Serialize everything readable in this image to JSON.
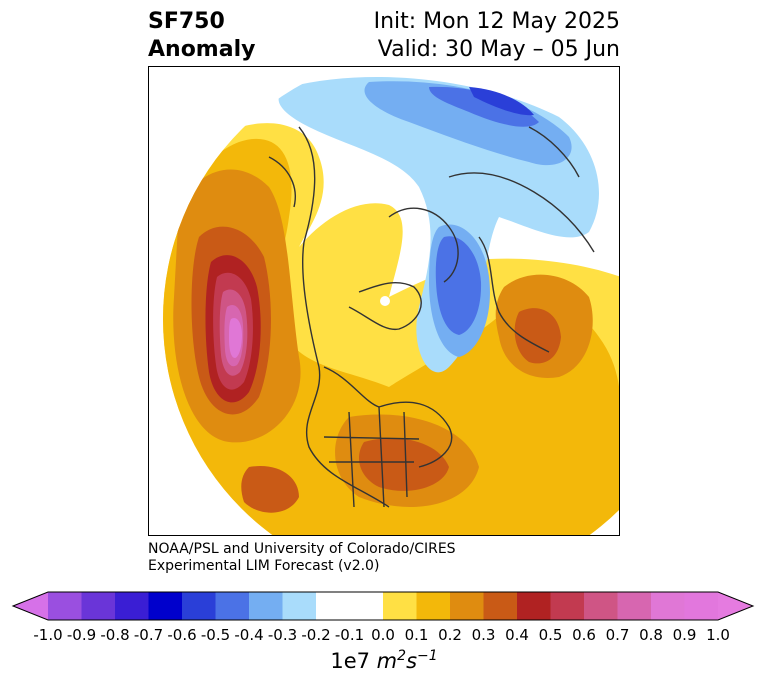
{
  "header": {
    "title_line1": "SF750",
    "title_line2": "Anomaly",
    "init": "Init: Mon 12 May 2025",
    "valid": "Valid: 30 May – 05 Jun"
  },
  "credit": {
    "line1": "NOAA/PSL and University of Colorado/CIRES",
    "line2": "Experimental LIM Forecast (v2.0)"
  },
  "colorbar": {
    "ticks": [
      "-1.0",
      "-0.9",
      "-0.8",
      "-0.7",
      "-0.6",
      "-0.5",
      "-0.4",
      "-0.3",
      "-0.2",
      "-0.1",
      "0.0",
      "0.1",
      "0.2",
      "0.3",
      "0.4",
      "0.5",
      "0.6",
      "0.7",
      "0.8",
      "0.9",
      "1.0"
    ],
    "colors": [
      "#9a4fe0",
      "#6a35d8",
      "#3a1ed4",
      "#0000cc",
      "#2a3fd8",
      "#4b72e6",
      "#74aef2",
      "#a9dcfb",
      "#ffffff",
      "#ffffff",
      "#ffe044",
      "#f3b80a",
      "#df8c10",
      "#c95a16",
      "#b02222",
      "#c23a50",
      "#cf5585",
      "#d766b0",
      "#e077d6",
      "#e277dd"
    ],
    "end_low_color": "#d671e8",
    "end_high_color": "#e57be0",
    "units_prefix": "1e7 ",
    "units_main": "m",
    "units_sup1": "2",
    "units_mid": "s",
    "units_sup2": "−1"
  },
  "map": {
    "projection": "north-polar-stereographic",
    "colors": {
      "yellow": "#ffe044",
      "gold": "#f3b80a",
      "orange": "#df8c10",
      "dark_orange": "#c95a16",
      "red": "#b02222",
      "rose": "#c23a50",
      "pink": "#cf5585",
      "magenta": "#d766b0",
      "violet": "#e077d6",
      "light_blue": "#a9dcfb",
      "sky_blue": "#74aef2",
      "blue": "#4b72e6",
      "deep_blue": "#2a3fd8",
      "coast": "#333333"
    }
  }
}
